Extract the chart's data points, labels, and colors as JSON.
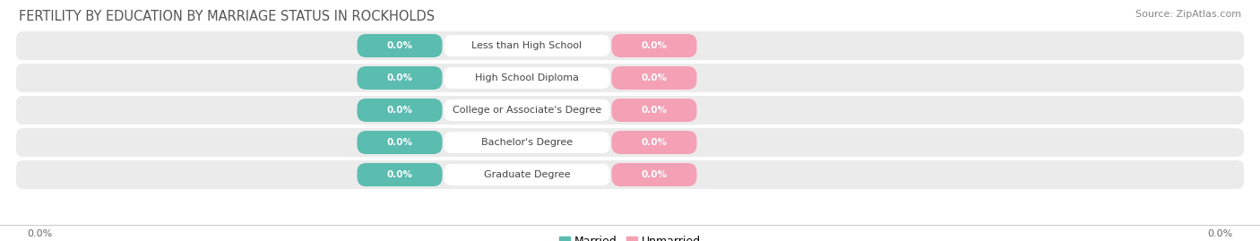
{
  "title": "FERTILITY BY EDUCATION BY MARRIAGE STATUS IN ROCKHOLDS",
  "source": "Source: ZipAtlas.com",
  "categories": [
    "Less than High School",
    "High School Diploma",
    "College or Associate's Degree",
    "Bachelor's Degree",
    "Graduate Degree"
  ],
  "married_values": [
    0.0,
    0.0,
    0.0,
    0.0,
    0.0
  ],
  "unmarried_values": [
    0.0,
    0.0,
    0.0,
    0.0,
    0.0
  ],
  "married_color": "#5bbcb0",
  "unmarried_color": "#f4a0b5",
  "row_bg_color": "#ebebeb",
  "label_bg_color": "#ffffff",
  "title_fontsize": 10.5,
  "source_fontsize": 8,
  "figsize": [
    14.06,
    2.69
  ],
  "dpi": 100
}
